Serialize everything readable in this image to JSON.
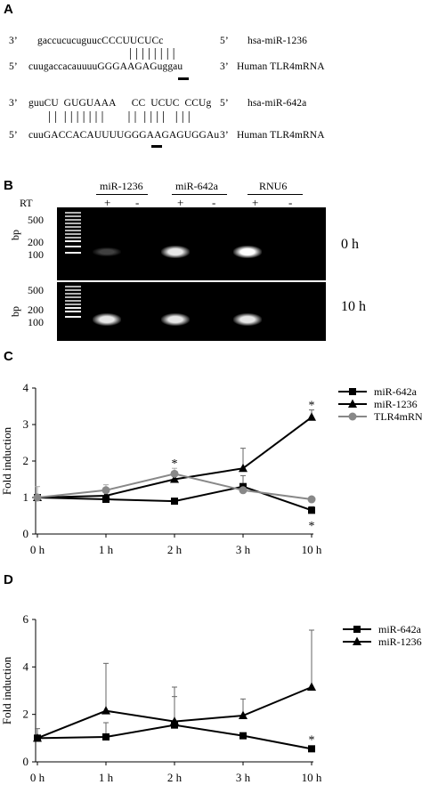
{
  "panel_a": {
    "label": "A",
    "pairs": [
      {
        "top_prefix": "3’",
        "top_seq": "gaccucucuguucCCCUUCUCc",
        "top_suffix": "5’",
        "top_name": "hsa-miR-1236",
        "bars": "| | | | | | | |",
        "bot_prefix": "5’",
        "bot_seq": "cuugaccacauuuuGGGAAGAGuggau",
        "bot_suffix": "3’",
        "bot_name": "Human TLR4mRNA"
      },
      {
        "top_prefix": "3’",
        "top_seq": "guuCU  GUGUAAA      CC  UCUC  CCUg",
        "top_suffix": "5’",
        "top_name": "hsa-miR-642a",
        "bars": "| |  | | | | | | |       | |  | | | |   | | |",
        "bot_prefix": "5’",
        "bot_seq": "cuuGACCACAUUUUGGGAAGAGUGGAu",
        "bot_suffix": "3’",
        "bot_name": "Human TLR4mRNA"
      }
    ]
  },
  "panel_b": {
    "label": "B",
    "rt_label": "RT",
    "groups": [
      "miR-1236",
      "miR-642a",
      "RNU6"
    ],
    "rt_signs": [
      "+",
      "-",
      "+",
      "-",
      "+",
      "-"
    ],
    "bp_label": "bp",
    "ladder_ticks": [
      "500",
      "200",
      "100"
    ],
    "gels": [
      {
        "time": "0 h",
        "bands": [
          0.25,
          0,
          0.9,
          0,
          1.0,
          0
        ]
      },
      {
        "time": "10 h",
        "bands": [
          0.9,
          0,
          0.9,
          0,
          0.9,
          0
        ]
      }
    ]
  },
  "panel_c": {
    "label": "C",
    "chart_data": {
      "type": "line",
      "categories": [
        "0 h",
        "1 h",
        "2 h",
        "3 h",
        "10 h"
      ],
      "ylabel": "Fold induction",
      "ylim": [
        0,
        4
      ],
      "yticks": [
        "0",
        "1",
        "2",
        "3",
        "4"
      ],
      "legend_position": "top-right",
      "series": [
        {
          "name": "miR-642a",
          "marker": "square",
          "color": "#000000",
          "values": [
            1.0,
            0.95,
            0.9,
            1.3,
            0.65
          ],
          "errors": [
            0.0,
            0.0,
            0.0,
            0.3,
            0.1
          ]
        },
        {
          "name": "miR-1236",
          "marker": "triangle",
          "color": "#000000",
          "values": [
            1.0,
            1.05,
            1.5,
            1.8,
            3.2
          ],
          "errors": [
            0.0,
            0.0,
            0.0,
            0.55,
            0.2
          ]
        },
        {
          "name": "TLR4mRNA",
          "marker": "circle",
          "color": "#888888",
          "values": [
            1.0,
            1.2,
            1.65,
            1.2,
            0.95
          ],
          "errors": [
            0.3,
            0.15,
            0.15,
            0.0,
            0.0
          ]
        }
      ],
      "annotations": [
        {
          "text": "*",
          "category": "2 h",
          "value": 1.95
        },
        {
          "text": "*",
          "category": "10 h",
          "value": 3.55
        },
        {
          "text": "*",
          "category": "10 h",
          "value": 0.25
        }
      ]
    }
  },
  "panel_d": {
    "label": "D",
    "chart_data": {
      "type": "line",
      "categories": [
        "0 h",
        "1 h",
        "2 h",
        "3 h",
        "10 h"
      ],
      "ylabel": "Fold induction",
      "ylim": [
        0,
        6
      ],
      "yticks": [
        "0",
        "2",
        "4",
        "6"
      ],
      "legend_position": "top-right",
      "series": [
        {
          "name": "miR-642a",
          "marker": "square",
          "color": "#000000",
          "values": [
            1.0,
            1.05,
            1.55,
            1.1,
            0.55
          ],
          "errors": [
            0.0,
            0.6,
            1.2,
            0.0,
            0.0
          ]
        },
        {
          "name": "miR-1236",
          "marker": "triangle",
          "color": "#000000",
          "values": [
            1.0,
            2.15,
            1.7,
            1.95,
            3.15
          ],
          "errors": [
            0.4,
            2.0,
            1.45,
            0.7,
            2.4
          ]
        }
      ],
      "annotations": [
        {
          "text": "*",
          "category": "10 h",
          "value": 0.95
        }
      ]
    }
  }
}
